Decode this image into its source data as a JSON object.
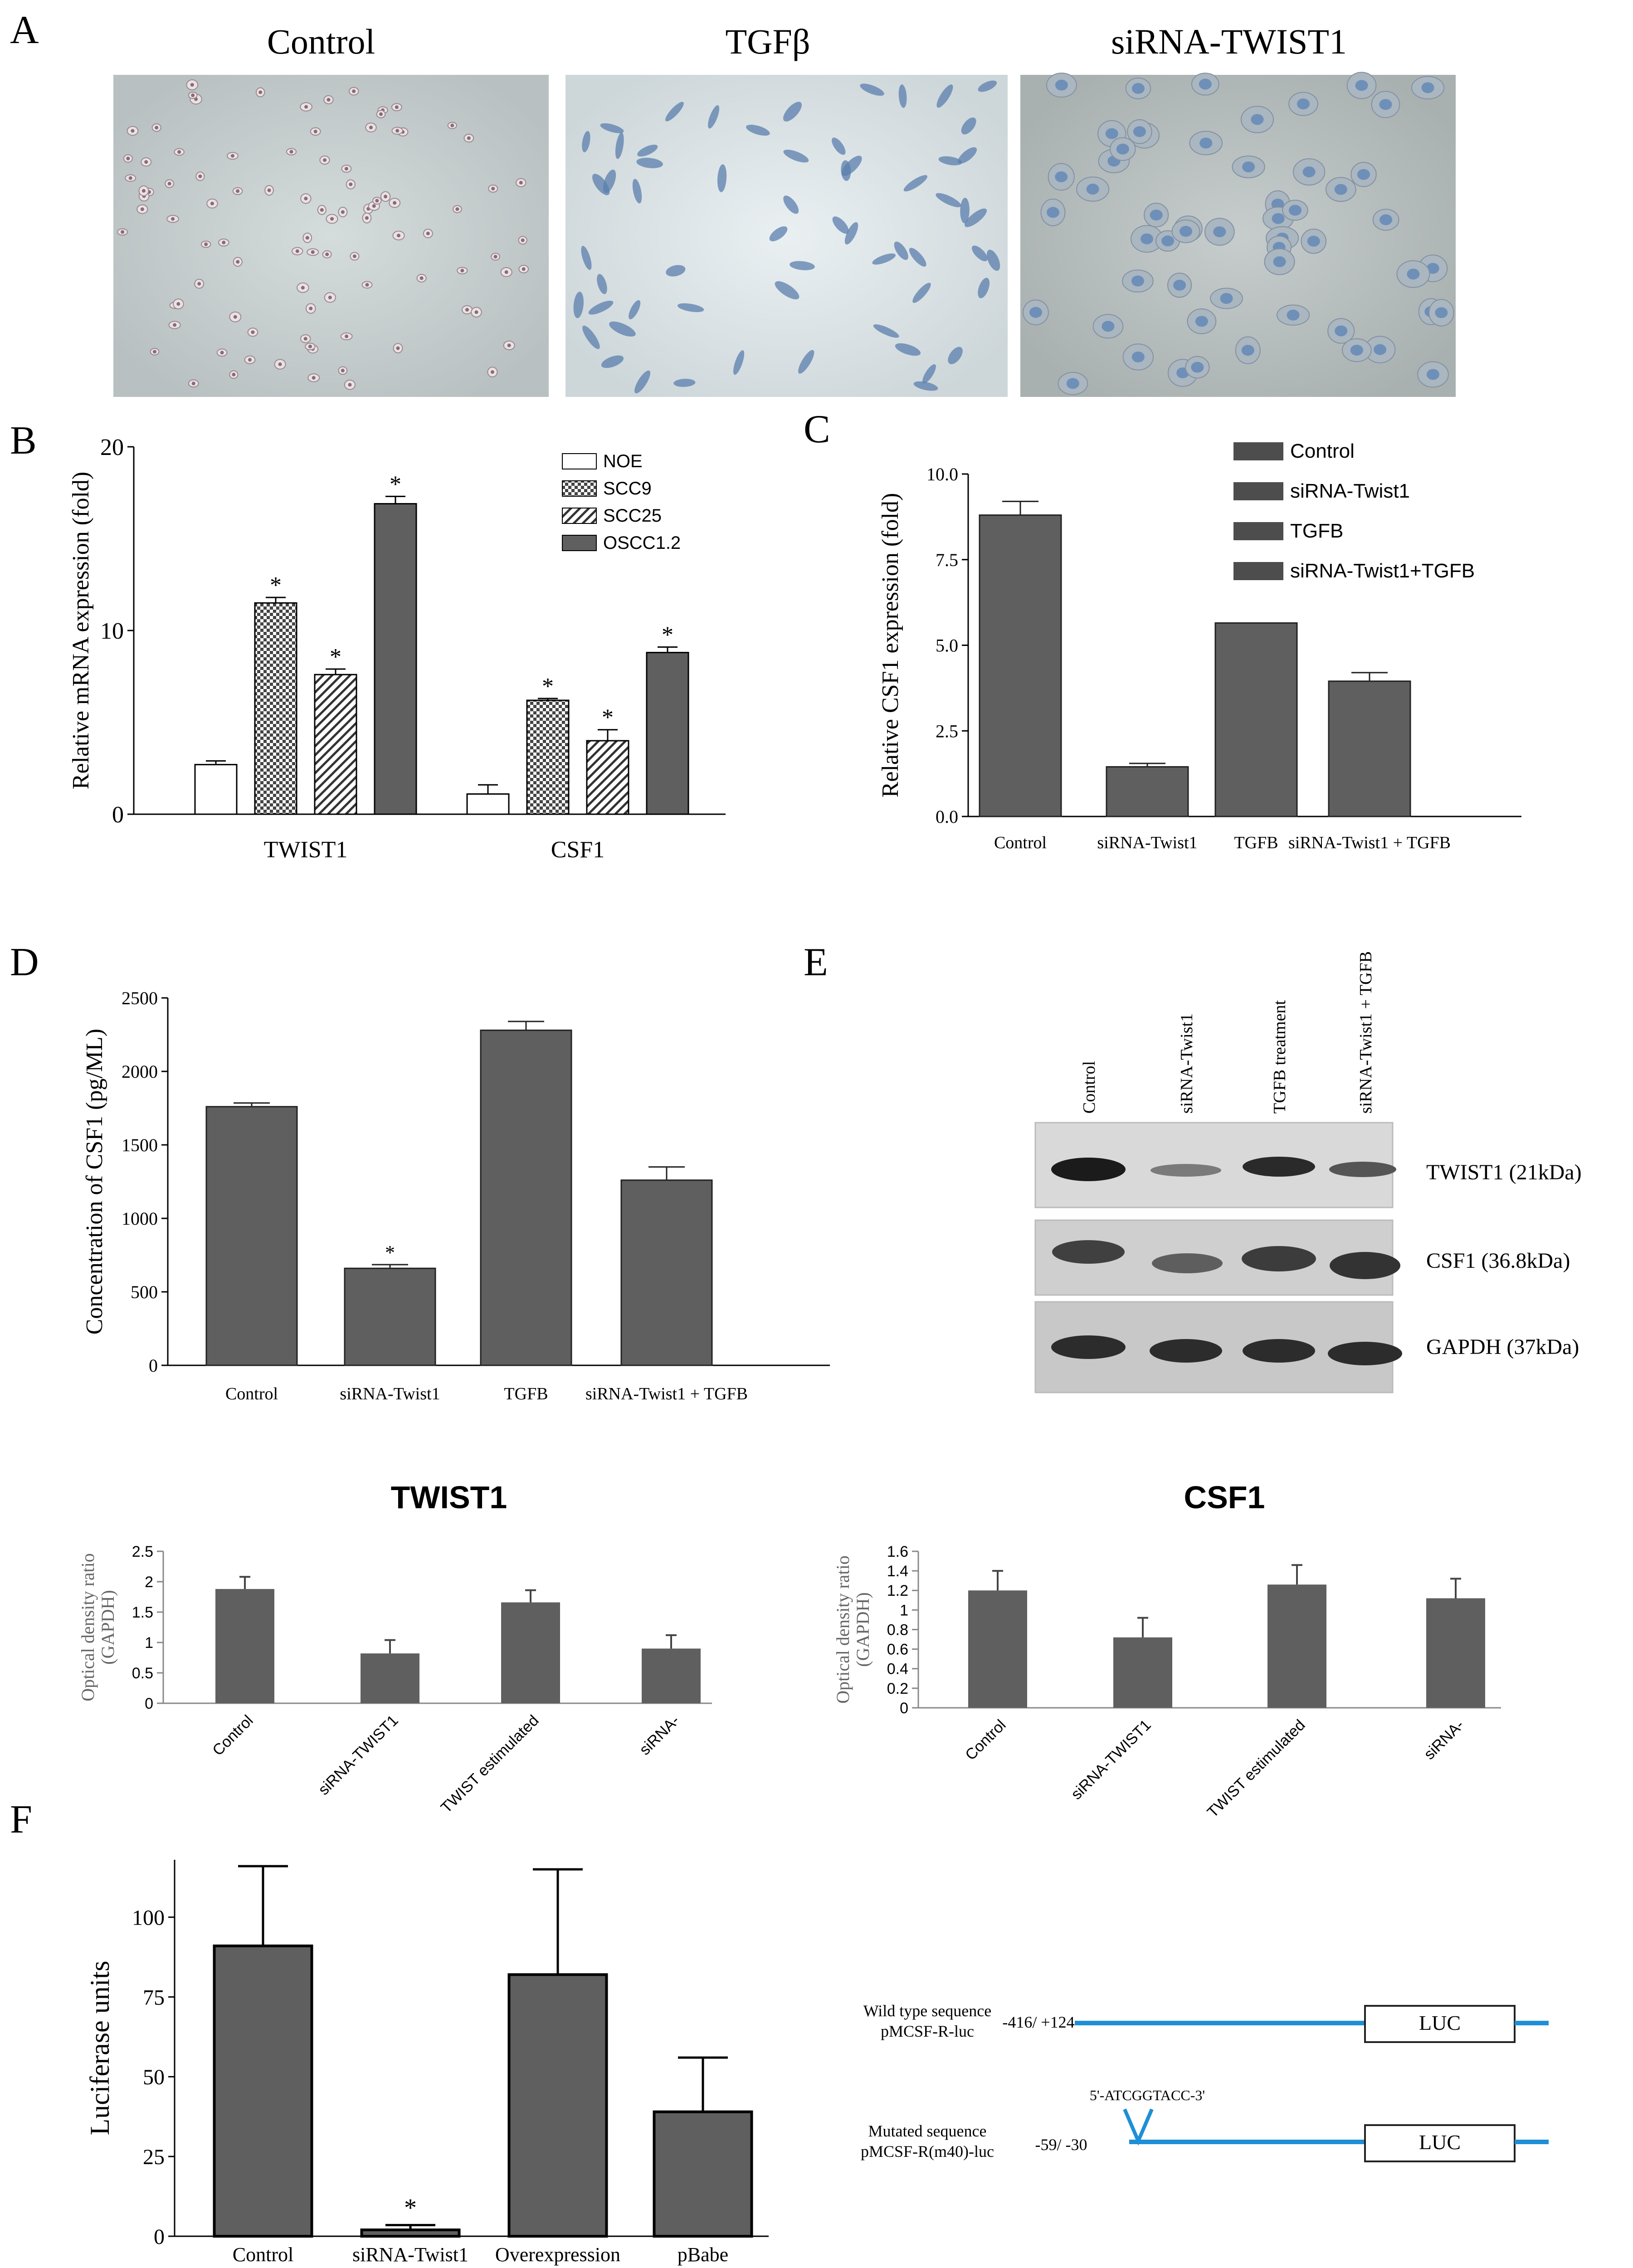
{
  "panel_labels": {
    "A": "A",
    "B": "B",
    "C": "C",
    "D": "D",
    "E": "E",
    "F": "F"
  },
  "images": {
    "control": "Control",
    "tgfb": "TGFβ",
    "sirna": "siRNA-TWIST1"
  },
  "colors": {
    "bar": "#5f5f5f",
    "dark": "#4d4d4d",
    "line": "#1e8fd6",
    "micro1": "#c4cbcb",
    "micro2": "#dde4e6",
    "micro3": "#b9c0c0",
    "cell1": "#8a6a74",
    "cell2": "#5b7fae",
    "cell3": "#6e8fb8"
  },
  "chart_data": [
    {
      "id": "B",
      "type": "bar",
      "ylabel": "Relative mRNA expression (fold)",
      "ylim": [
        0,
        20
      ],
      "yticks": [
        "0",
        "10",
        "20"
      ],
      "categories": [
        "TWIST1",
        "CSF1"
      ],
      "series": [
        {
          "name": "NOE",
          "values": [
            2.7,
            1.1
          ],
          "errors": [
            0.2,
            0.5
          ],
          "sig": [
            "",
            ""
          ]
        },
        {
          "name": "SCC9",
          "values": [
            11.5,
            6.2
          ],
          "errors": [
            0.3,
            0.1
          ],
          "sig": [
            "*",
            "*"
          ]
        },
        {
          "name": "SCC25",
          "values": [
            7.6,
            4.0
          ],
          "errors": [
            0.3,
            0.6
          ],
          "sig": [
            "*",
            "*"
          ]
        },
        {
          "name": "OSCC1.2",
          "values": [
            16.9,
            8.8
          ],
          "errors": [
            0.4,
            0.3
          ],
          "sig": [
            "*",
            "*"
          ]
        }
      ]
    },
    {
      "id": "C",
      "type": "bar",
      "ylabel": "Relative  CSF1 expression (fold)",
      "ylim": [
        0,
        10
      ],
      "yticks": [
        "0.0",
        "2.5",
        "5.0",
        "7.5",
        "10.0"
      ],
      "categories": [
        "Control",
        "siRNA-Twist1",
        "TGFB",
        "siRNA-Twist1 + TGFB"
      ],
      "legend": [
        "Control",
        "siRNA-Twist1",
        "TGFB",
        "siRNA-Twist1+TGFB"
      ],
      "values": [
        8.8,
        1.45,
        5.65,
        3.95
      ],
      "errors": [
        0.4,
        0.1,
        0,
        0.25
      ]
    },
    {
      "id": "D",
      "type": "bar",
      "ylabel": "Concentration of CSF1  (pg/ML)",
      "ylim": [
        0,
        2500
      ],
      "yticks": [
        "0",
        "500",
        "1000",
        "1500",
        "2000",
        "2500"
      ],
      "categories": [
        "Control",
        "siRNA-Twist1",
        "TGFB",
        "siRNA-Twist1 + TGFB"
      ],
      "values": [
        1760,
        660,
        2280,
        1260
      ],
      "errors": [
        25,
        25,
        60,
        90
      ],
      "sig": [
        "",
        "*",
        "",
        ""
      ]
    },
    {
      "id": "E1",
      "type": "bar",
      "title": "TWIST1",
      "ylabel": "Optical density ratio (GAPDH)",
      "ylim": [
        0,
        2.5
      ],
      "yticks": [
        "0",
        "0.5",
        "1",
        "1.5",
        "2",
        "2.5"
      ],
      "categories": [
        "Control",
        "siRNA-TWIST1",
        "TWIST estimulated",
        "siRNA-"
      ],
      "values": [
        1.88,
        0.82,
        1.66,
        0.9
      ],
      "errors": [
        0.2,
        0.22,
        0.2,
        0.22
      ]
    },
    {
      "id": "E2",
      "type": "bar",
      "title": "CSF1",
      "ylabel": "Optical density ratio (GAPDH)",
      "ylim": [
        0,
        1.6
      ],
      "yticks": [
        "0",
        "0.2",
        "0.4",
        "0.6",
        "0.8",
        "1",
        "1.2",
        "1.4",
        "1.6"
      ],
      "categories": [
        "Control",
        "siRNA-TWIST1",
        "TWIST estimulated",
        "siRNA-"
      ],
      "values": [
        1.2,
        0.72,
        1.26,
        1.12
      ],
      "errors": [
        0.2,
        0.2,
        0.2,
        0.2
      ]
    },
    {
      "id": "F",
      "type": "bar",
      "ylabel": "Luciferase units",
      "ylim": [
        0,
        118
      ],
      "yticks": [
        "0",
        "25",
        "50",
        "75",
        "100"
      ],
      "categories": [
        "Control",
        "siRNA-Twist1",
        "Overexpression",
        "pBabe"
      ],
      "values": [
        91,
        2,
        82,
        39
      ],
      "errors": [
        25,
        1.5,
        33,
        17
      ],
      "sig": [
        "",
        "*",
        "",
        ""
      ]
    }
  ],
  "blot": {
    "lanes": [
      "Control",
      "siRNA-Twist1",
      "TGFB treatment",
      "siRNA-Twist1 + TGFB"
    ],
    "rows": [
      "TWIST1 (21kDa)",
      "CSF1 (36.8kDa)",
      "GAPDH (37kDa)"
    ]
  },
  "constructs": {
    "wt_label1": "Wild type sequence",
    "wt_label2": "pMCSF-R-luc",
    "wt_pos": "-416/ +124",
    "mut_label1": "Mutated sequence",
    "mut_label2": "pMCSF-R(m40)-luc",
    "mut_pos": "-59/ -30",
    "mut_seq": "5'-ATCGGTACC-3'",
    "luc": "LUC"
  }
}
